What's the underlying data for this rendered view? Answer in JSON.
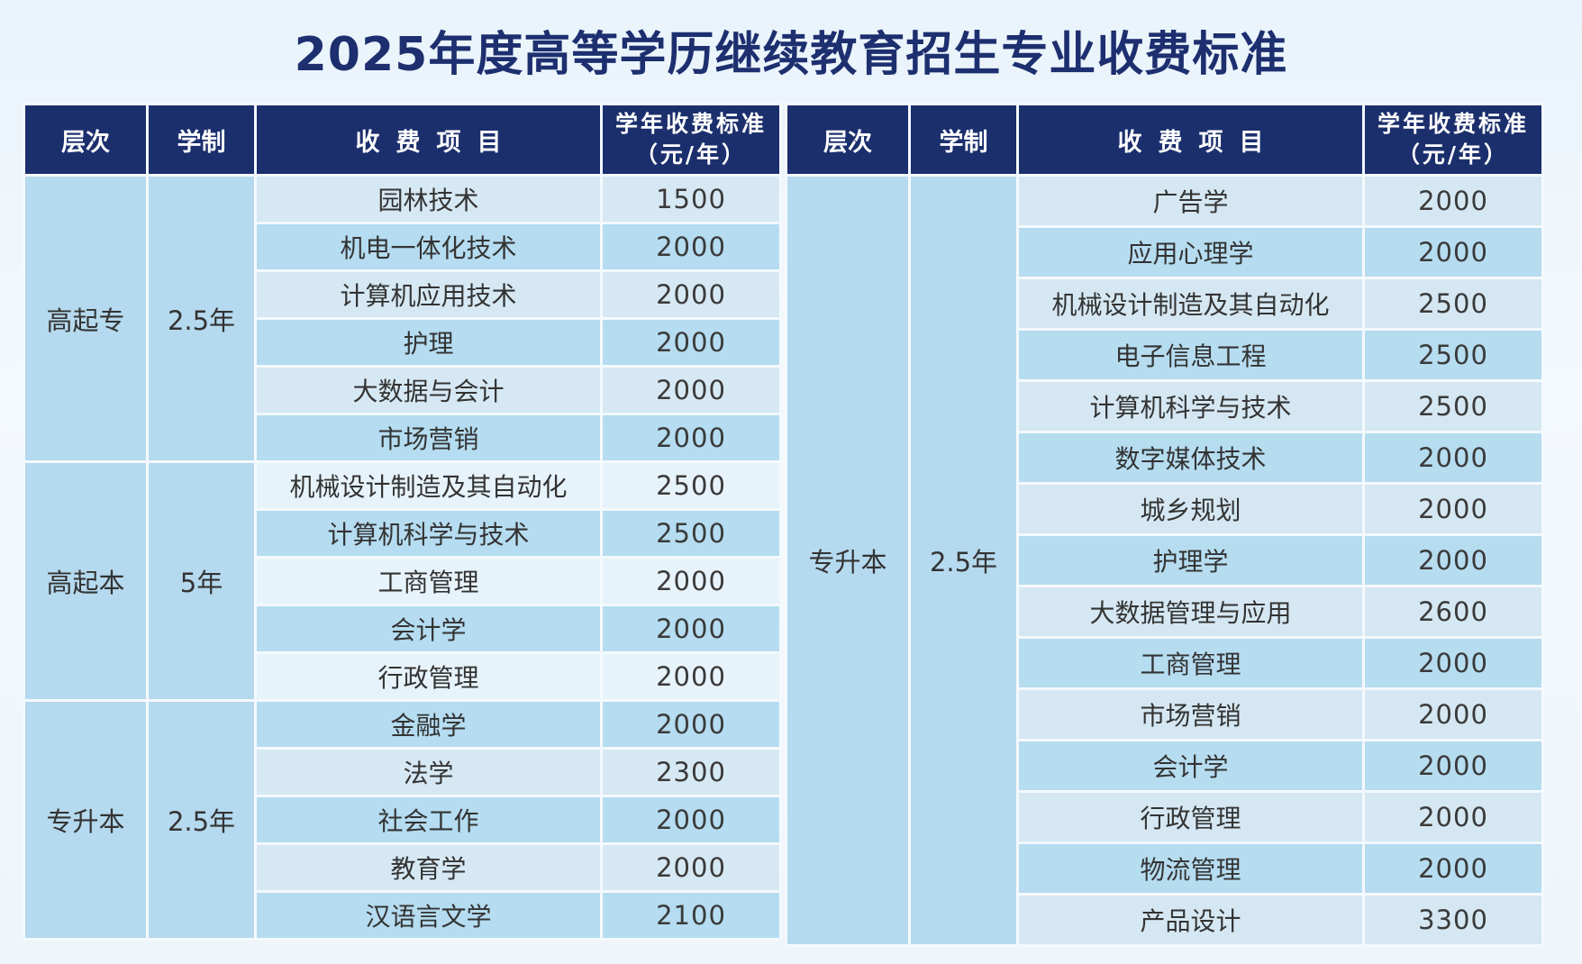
{
  "title": "2025年度高等学历继续教育招生专业收费标准",
  "headers": {
    "level": "层次",
    "years": "学制",
    "item": "收费项目",
    "fee_line1": "学年收费标准",
    "fee_line2": "（元/年）"
  },
  "left_table": {
    "groups": [
      {
        "level": "高起专",
        "years": "2.5年",
        "majors": [
          {
            "name": "园林技术",
            "fee": "1500"
          },
          {
            "name": "机电一体化技术",
            "fee": "2000"
          },
          {
            "name": "计算机应用技术",
            "fee": "2000"
          },
          {
            "name": "护理",
            "fee": "2000"
          },
          {
            "name": "大数据与会计",
            "fee": "2000"
          },
          {
            "name": "市场营销",
            "fee": "2000"
          }
        ]
      },
      {
        "level": "高起本",
        "years": "5年",
        "majors": [
          {
            "name": "机械设计制造及其自动化",
            "fee": "2500"
          },
          {
            "name": "计算机科学与技术",
            "fee": "2500"
          },
          {
            "name": "工商管理",
            "fee": "2000"
          },
          {
            "name": "会计学",
            "fee": "2000"
          },
          {
            "name": "行政管理",
            "fee": "2000"
          }
        ]
      },
      {
        "level": "专升本",
        "years": "2.5年",
        "majors": [
          {
            "name": "金融学",
            "fee": "2000"
          },
          {
            "name": "法学",
            "fee": "2300"
          },
          {
            "name": "社会工作",
            "fee": "2000"
          },
          {
            "name": "教育学",
            "fee": "2000"
          },
          {
            "name": "汉语言文学",
            "fee": "2100"
          }
        ]
      }
    ]
  },
  "right_table": {
    "groups": [
      {
        "level": "专升本",
        "years": "2.5年",
        "majors": [
          {
            "name": "广告学",
            "fee": "2000"
          },
          {
            "name": "应用心理学",
            "fee": "2000"
          },
          {
            "name": "机械设计制造及其自动化",
            "fee": "2500"
          },
          {
            "name": "电子信息工程",
            "fee": "2500"
          },
          {
            "name": "计算机科学与技术",
            "fee": "2500"
          },
          {
            "name": "数字媒体技术",
            "fee": "2000"
          },
          {
            "name": "城乡规划",
            "fee": "2000"
          },
          {
            "name": "护理学",
            "fee": "2000"
          },
          {
            "name": "大数据管理与应用",
            "fee": "2600"
          },
          {
            "name": "工商管理",
            "fee": "2000"
          },
          {
            "name": "市场营销",
            "fee": "2000"
          },
          {
            "name": "会计学",
            "fee": "2000"
          },
          {
            "name": "行政管理",
            "fee": "2000"
          },
          {
            "name": "物流管理",
            "fee": "2000"
          },
          {
            "name": "产品设计",
            "fee": "3300"
          }
        ]
      }
    ]
  }
}
